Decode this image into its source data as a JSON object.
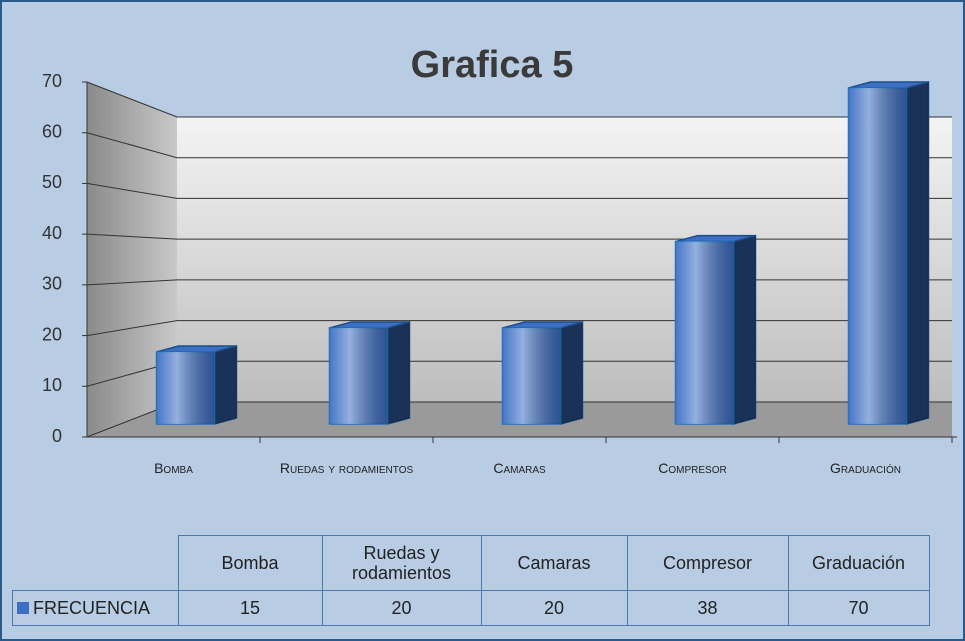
{
  "chart_data": {
    "type": "bar3d",
    "title": "Grafica 5",
    "categories": [
      "Bomba",
      "Ruedas y rodamientos",
      "Camaras",
      "Compresor",
      "Graduación"
    ],
    "series": [
      {
        "name": "FRECUENCIA",
        "color": "#3d6fc4",
        "values": [
          15,
          20,
          20,
          38,
          70
        ]
      }
    ],
    "ylim": [
      0,
      70
    ],
    "yticks": [
      0,
      10,
      20,
      30,
      40,
      50,
      60,
      70
    ],
    "grid": true,
    "data_table": true
  }
}
